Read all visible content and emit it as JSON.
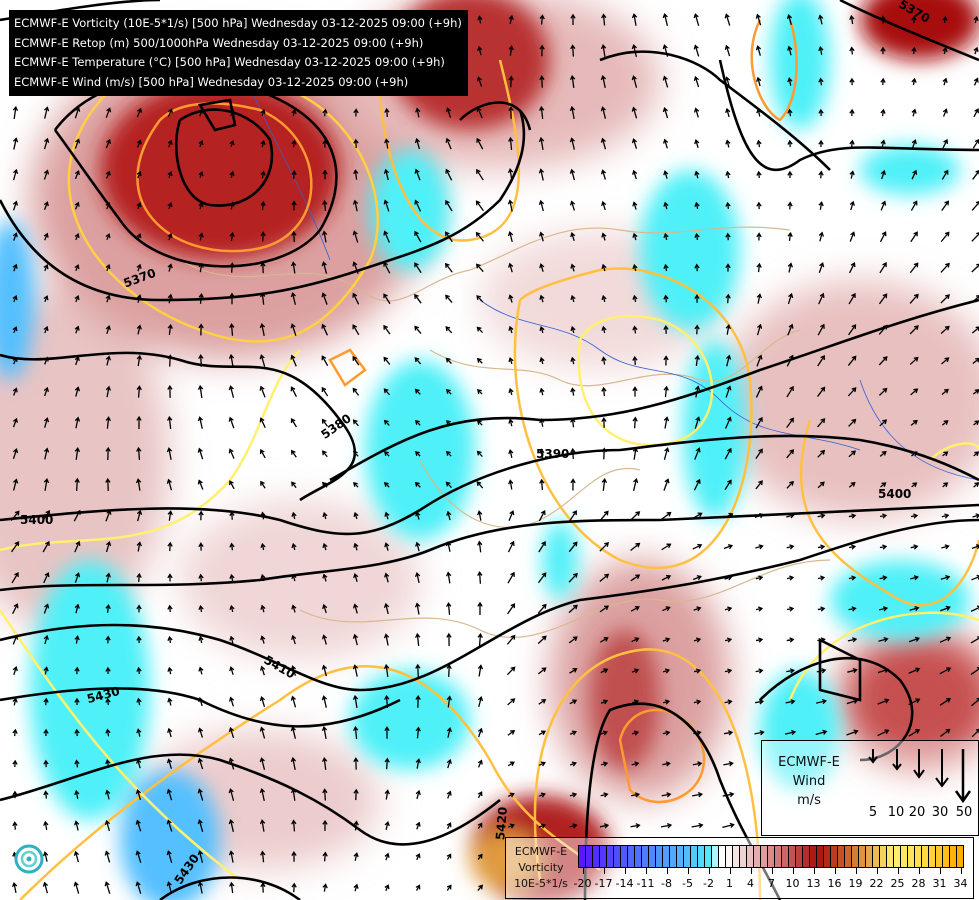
{
  "header": {
    "lines": [
      "ECMWF-E Vorticity (10E-5*1/s) [500 hPa] Wednesday 03-12-2025 09:00 (+9h)",
      "ECMWF-E Retop (m) 500/1000hPa Wednesday 03-12-2025 09:00 (+9h)",
      "ECMWF-E Temperature (°C) [500 hPa] Wednesday 03-12-2025 09:00 (+9h)",
      "ECMWF-E Wind (m/s) [500 hPa] Wednesday 03-12-2025 09:00 (+9h)"
    ]
  },
  "contour_labels": [
    "5370",
    "5370",
    "5380",
    "5390",
    "5400",
    "5400",
    "5410",
    "5430",
    "5420",
    "5430"
  ],
  "vorticity_legend": {
    "title_lines": [
      "ECMWF-E",
      "Vorticity",
      "10E-5*1/s"
    ],
    "ticks": [
      "-20",
      "-17",
      "-14",
      "-11",
      "-8",
      "-5",
      "-2",
      "1",
      "4",
      "7",
      "10",
      "13",
      "16",
      "19",
      "22",
      "25",
      "28",
      "31",
      "34"
    ],
    "range": [
      -20,
      35
    ],
    "color_stops": [
      {
        "v": -20,
        "c": "#5a10ff"
      },
      {
        "v": -14,
        "c": "#4f55ff"
      },
      {
        "v": -8,
        "c": "#5098ff"
      },
      {
        "v": -4,
        "c": "#55c0ff"
      },
      {
        "v": -1,
        "c": "#50f0f8"
      },
      {
        "v": 0,
        "c": "#ffffff"
      },
      {
        "v": 1,
        "c": "#ffffff"
      },
      {
        "v": 4,
        "c": "#ecc8c8"
      },
      {
        "v": 9,
        "c": "#d07070"
      },
      {
        "v": 14,
        "c": "#a81010"
      },
      {
        "v": 16,
        "c": "#b83018"
      },
      {
        "v": 20,
        "c": "#d88838"
      },
      {
        "v": 25,
        "c": "#fff070"
      },
      {
        "v": 30,
        "c": "#ffd840"
      },
      {
        "v": 34,
        "c": "#ffae00"
      }
    ]
  },
  "wind_legend": {
    "title_lines": [
      "ECMWF-E",
      "Wind",
      "m/s"
    ],
    "speeds": [
      "5",
      "10",
      "20",
      "30",
      "50"
    ]
  },
  "colors": {
    "height_contour": "#000000",
    "temperature_warm": "#ffd040",
    "temperature_cold": "#ff9a30",
    "borders": "#d8b890",
    "rivers": "#3060d0"
  }
}
